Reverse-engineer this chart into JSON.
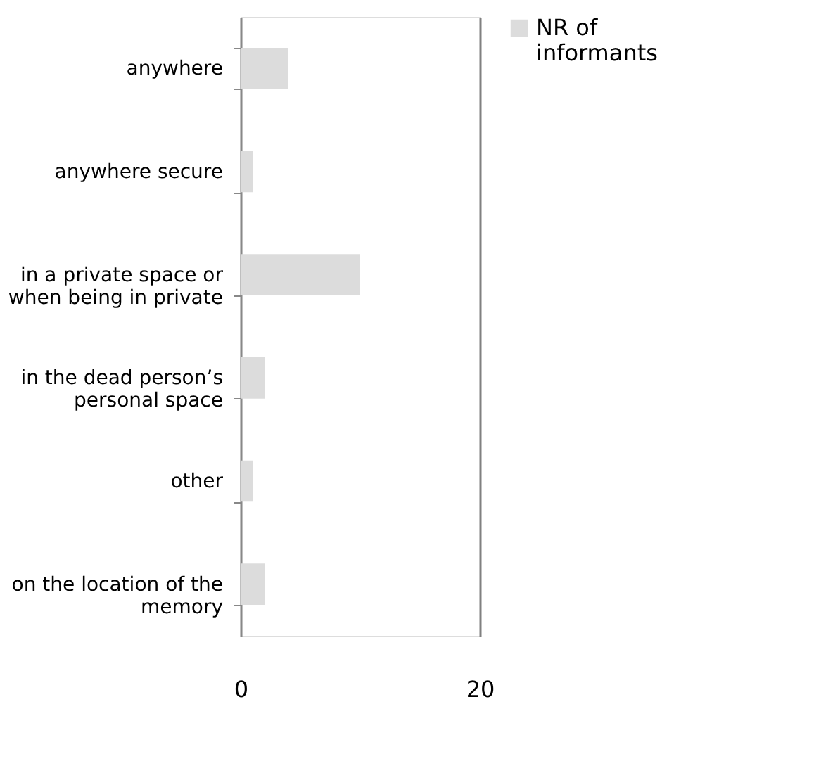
{
  "chart_data": {
    "type": "bar",
    "orientation": "horizontal",
    "categories": [
      "anywhere",
      "anywhere secure",
      "in a private space or when being in private",
      "in the dead person’s personal space",
      "other",
      "on the location of the memory"
    ],
    "series": [
      {
        "name": "NR of informants",
        "color": "#dcdcdc",
        "values": [
          4,
          1,
          10,
          2,
          1,
          2
        ]
      }
    ],
    "xlim": [
      0,
      20
    ],
    "xticks": [
      0,
      20
    ],
    "grid": "x",
    "legend": "right"
  }
}
